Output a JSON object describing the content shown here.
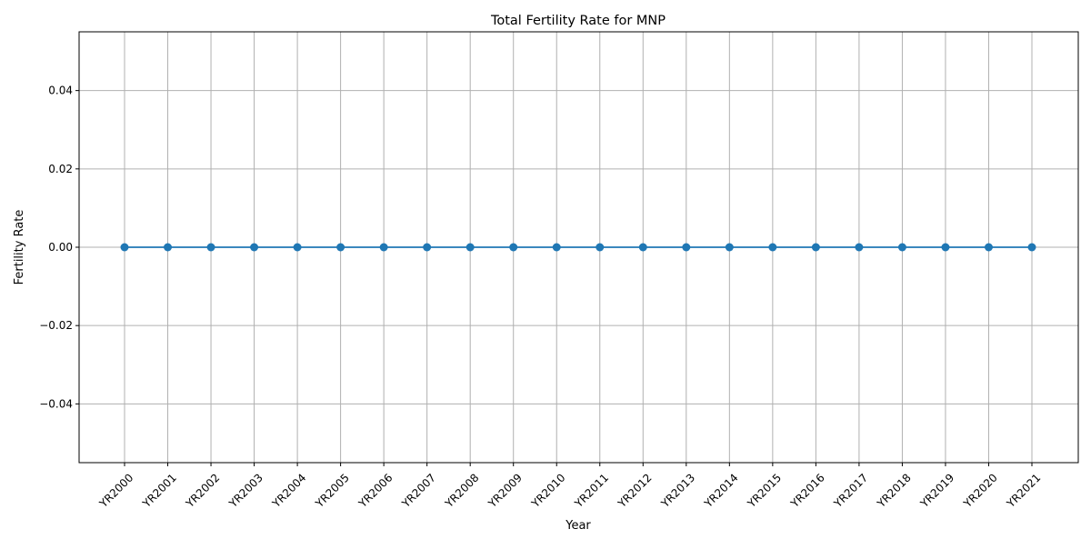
{
  "chart_data": {
    "type": "line",
    "title": "Total Fertility Rate for MNP",
    "xlabel": "Year",
    "ylabel": "Fertility Rate",
    "categories": [
      "YR2000",
      "YR2001",
      "YR2002",
      "YR2003",
      "YR2004",
      "YR2005",
      "YR2006",
      "YR2007",
      "YR2008",
      "YR2009",
      "YR2010",
      "YR2011",
      "YR2012",
      "YR2013",
      "YR2014",
      "YR2015",
      "YR2016",
      "YR2017",
      "YR2018",
      "YR2019",
      "YR2020",
      "YR2021"
    ],
    "series": [
      {
        "values": [
          0,
          0,
          0,
          0,
          0,
          0,
          0,
          0,
          0,
          0,
          0,
          0,
          0,
          0,
          0,
          0,
          0,
          0,
          0,
          0,
          0,
          0
        ],
        "color": "#1f77b4",
        "marker": "circle"
      }
    ],
    "ylim": [
      -0.055,
      0.055
    ],
    "yticks": [
      -0.04,
      -0.02,
      0.0,
      0.02,
      0.04
    ],
    "ytick_labels": [
      "−0.04",
      "−0.02",
      "0.00",
      "0.02",
      "0.04"
    ],
    "grid": true,
    "xtick_rotation": 45
  }
}
